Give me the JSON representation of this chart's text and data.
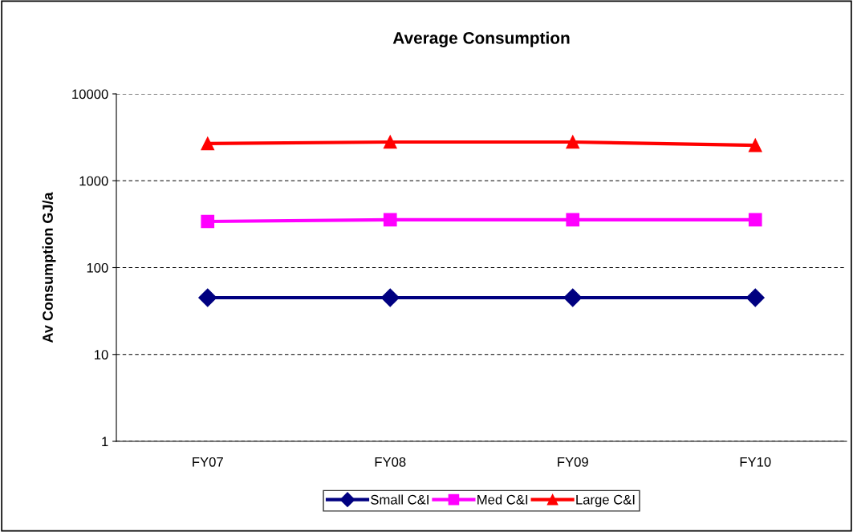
{
  "chart_data": {
    "type": "line",
    "title": "Average Consumption",
    "ylabel": "Av Consumption GJ/a",
    "categories": [
      "FY07",
      "FY08",
      "FY09",
      "FY10"
    ],
    "series": [
      {
        "name": "Small C&I",
        "color": "#000080",
        "values": [
          45,
          45,
          45,
          45
        ],
        "marker": "diamond"
      },
      {
        "name": "Med C&I",
        "color": "#ff00ff",
        "values": [
          340,
          355,
          355,
          355
        ],
        "marker": "square"
      },
      {
        "name": "Large C&I",
        "color": "#ff0000",
        "values": [
          2680,
          2790,
          2790,
          2560
        ],
        "marker": "triangle"
      }
    ],
    "log": true,
    "ylim": [
      1,
      10000
    ],
    "yticks": [
      1,
      10,
      100,
      1000,
      10000
    ],
    "grid": "y",
    "legend": "bottom",
    "line_style": "solid"
  }
}
